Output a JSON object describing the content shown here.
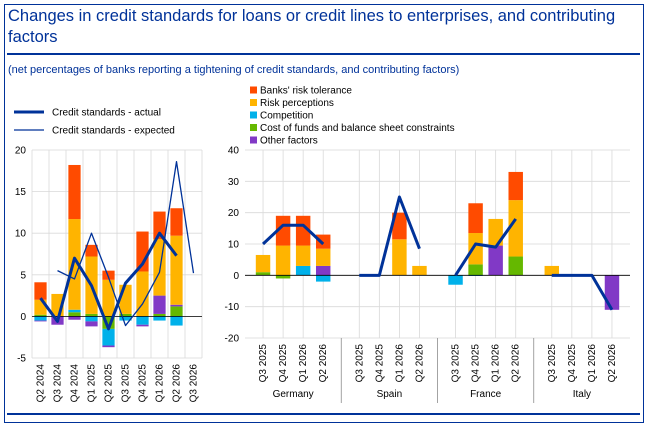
{
  "title": "Changes in credit standards for loans or credit lines to enterprises, and contributing factors",
  "subtitle": "(net percentages of banks reporting a tightening of credit standards, and contributing factors)",
  "colors": {
    "risk_tolerance": "#ff4b00",
    "risk_perceptions": "#ffb400",
    "competition": "#00b1ea",
    "cost_of_funds": "#65b800",
    "other": "#8139c6",
    "actual": "#003299",
    "expected": "#003299"
  },
  "legend_left": [
    {
      "key": "actual",
      "label": "Credit standards - actual"
    },
    {
      "key": "expected",
      "label": "Credit standards - expected"
    }
  ],
  "legend_right": [
    {
      "key": "risk_tolerance",
      "label": "Banks' risk tolerance"
    },
    {
      "key": "risk_perceptions",
      "label": "Risk perceptions"
    },
    {
      "key": "competition",
      "label": "Competition"
    },
    {
      "key": "cost_of_funds",
      "label": "Cost of funds and balance sheet constraints"
    },
    {
      "key": "other",
      "label": "Other factors"
    }
  ],
  "chart_data": [
    {
      "type": "bar",
      "stacked": true,
      "categories": [
        "Q2 2024",
        "Q3 2024",
        "Q4 2024",
        "Q1 2025",
        "Q2 2025",
        "Q3 2025",
        "Q4 2025",
        "Q1 2026",
        "Q2 2026",
        "Q3 2026"
      ],
      "ylim": [
        -5,
        20
      ],
      "yticks": [
        -5,
        0,
        5,
        10,
        15,
        20
      ],
      "grid": true,
      "series": [
        {
          "key": "cost_of_funds",
          "values": [
            0.2,
            0,
            0.5,
            0.3,
            -1.5,
            0.3,
            0,
            0.3,
            1.2,
            null
          ]
        },
        {
          "key": "competition",
          "values": [
            -0.5,
            0,
            0.3,
            -0.6,
            -2,
            -0.5,
            -1,
            -0.5,
            -1.1,
            null
          ]
        },
        {
          "key": "other",
          "values": [
            -0.1,
            -1,
            -0.4,
            -0.6,
            -0.2,
            0,
            -0.2,
            2.2,
            0.2,
            null
          ]
        },
        {
          "key": "risk_perceptions",
          "values": [
            1.8,
            2.7,
            10.9,
            6.9,
            4.4,
            3.5,
            5.4,
            6.8,
            8.3,
            null
          ]
        },
        {
          "key": "risk_tolerance",
          "values": [
            2.1,
            0,
            6.5,
            1.4,
            1.1,
            0,
            4.8,
            3.3,
            3.3,
            null
          ]
        }
      ],
      "lines": [
        {
          "key": "actual",
          "values": [
            2.2,
            -0.6,
            7,
            3.7,
            -1.5,
            4,
            6.3,
            10,
            7.3,
            null
          ]
        },
        {
          "key": "expected",
          "values": [
            null,
            5.5,
            4.5,
            10,
            4.7,
            -1.1,
            1.5,
            5.3,
            18.6,
            5.2
          ]
        }
      ]
    },
    {
      "type": "bar",
      "stacked": true,
      "groups": [
        {
          "name": "Germany",
          "categories": [
            "Q3 2025",
            "Q4 2025",
            "Q1 2026",
            "Q2 2026"
          ]
        },
        {
          "name": "Spain",
          "categories": [
            "Q3 2025",
            "Q4 2025",
            "Q1 2026",
            "Q2 2026"
          ]
        },
        {
          "name": "France",
          "categories": [
            "Q3 2025",
            "Q4 2025",
            "Q1 2026",
            "Q2 2026"
          ]
        },
        {
          "name": "Italy",
          "categories": [
            "Q3 2025",
            "Q4 2025",
            "Q1 2026",
            "Q2 2026"
          ]
        }
      ],
      "ylim": [
        -20,
        40
      ],
      "yticks": [
        -20,
        -10,
        0,
        10,
        20,
        30,
        40
      ],
      "grid": true,
      "series": [
        {
          "key": "cost_of_funds",
          "values": [
            [
              1,
              -1,
              0,
              0
            ],
            [
              0,
              0,
              0,
              0
            ],
            [
              0,
              3.5,
              0,
              6
            ],
            [
              0,
              0,
              0,
              0
            ]
          ]
        },
        {
          "key": "competition",
          "values": [
            [
              0,
              0,
              3,
              -2
            ],
            [
              0,
              0,
              0,
              0
            ],
            [
              -3,
              -0.2,
              0,
              0
            ],
            [
              0,
              0,
              0,
              0
            ]
          ]
        },
        {
          "key": "other",
          "values": [
            [
              0,
              0,
              0,
              3
            ],
            [
              0,
              0,
              0,
              0
            ],
            [
              0,
              0,
              9.5,
              0
            ],
            [
              0,
              0,
              0,
              -11
            ]
          ]
        },
        {
          "key": "risk_perceptions",
          "values": [
            [
              5.5,
              9.5,
              6.5,
              5.5
            ],
            [
              0,
              0,
              11.5,
              3
            ],
            [
              0,
              10,
              8.5,
              18
            ],
            [
              3,
              0,
              0,
              0
            ]
          ]
        },
        {
          "key": "risk_tolerance",
          "values": [
            [
              0,
              9.5,
              9.5,
              4.5
            ],
            [
              0,
              0,
              8.5,
              0
            ],
            [
              0,
              9.5,
              0,
              9
            ],
            [
              0,
              0,
              0,
              0
            ]
          ]
        }
      ],
      "lines": [
        {
          "key": "actual",
          "values": [
            [
              10,
              16,
              16,
              10
            ],
            [
              0,
              0,
              25,
              8.5
            ],
            [
              0,
              10,
              9,
              18
            ],
            [
              0,
              0,
              0,
              -11
            ]
          ]
        }
      ]
    }
  ]
}
